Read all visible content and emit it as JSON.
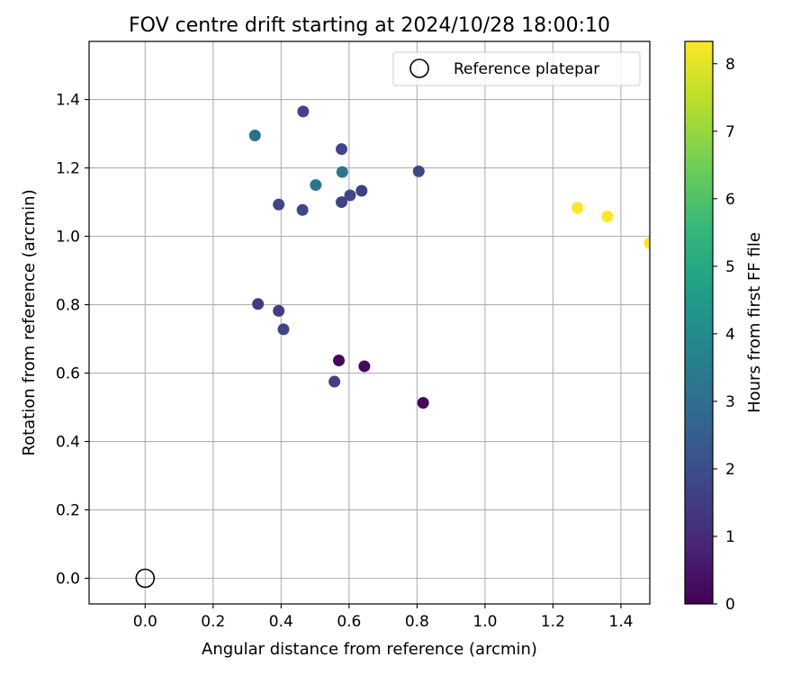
{
  "chart_data": {
    "type": "scatter",
    "title": "FOV centre drift starting at 2024/10/28 18:00:10",
    "xlabel": "Angular distance from reference (arcmin)",
    "ylabel": "Rotation from reference (arcmin)",
    "xlim": [
      -0.165,
      1.485
    ],
    "ylim": [
      -0.075,
      1.57
    ],
    "xticks": [
      0.0,
      0.2,
      0.4,
      0.6,
      0.8,
      1.0,
      1.2,
      1.4
    ],
    "xtick_labels": [
      "0.0",
      "0.2",
      "0.4",
      "0.6",
      "0.8",
      "1.0",
      "1.2",
      "1.4"
    ],
    "yticks": [
      0.0,
      0.2,
      0.4,
      0.6,
      0.8,
      1.0,
      1.2,
      1.4
    ],
    "ytick_labels": [
      "0.0",
      "0.2",
      "0.4",
      "0.6",
      "0.8",
      "1.0",
      "1.2",
      "1.4"
    ],
    "grid": true,
    "legend": {
      "placement": "top-right",
      "entries": [
        "Reference platepar"
      ]
    },
    "reference_point": {
      "x": 0.0,
      "y": 0.0
    },
    "colorbar": {
      "label": "Hours from first FF file",
      "range": [
        0,
        8.33
      ],
      "ticks": [
        0,
        1,
        2,
        3,
        4,
        5,
        6,
        7,
        8
      ],
      "tick_labels": [
        "0",
        "1",
        "2",
        "3",
        "4",
        "5",
        "6",
        "7",
        "8"
      ],
      "colormap": "viridis",
      "colormap_stops": [
        "#440154",
        "#482878",
        "#3e4989",
        "#31688e",
        "#26828e",
        "#1f9e89",
        "#35b779",
        "#6ece58",
        "#b5de2b",
        "#fde725"
      ]
    },
    "points": [
      {
        "x": 0.465,
        "y": 1.365,
        "c": 1.7
      },
      {
        "x": 0.323,
        "y": 1.295,
        "c": 3.0
      },
      {
        "x": 0.578,
        "y": 1.255,
        "c": 1.8
      },
      {
        "x": 0.805,
        "y": 1.19,
        "c": 1.8
      },
      {
        "x": 0.58,
        "y": 1.188,
        "c": 3.3
      },
      {
        "x": 0.502,
        "y": 1.15,
        "c": 3.2
      },
      {
        "x": 0.637,
        "y": 1.133,
        "c": 1.6
      },
      {
        "x": 0.603,
        "y": 1.12,
        "c": 1.8
      },
      {
        "x": 0.578,
        "y": 1.1,
        "c": 1.7
      },
      {
        "x": 0.393,
        "y": 1.093,
        "c": 1.7
      },
      {
        "x": 0.463,
        "y": 1.077,
        "c": 1.8
      },
      {
        "x": 1.272,
        "y": 1.083,
        "c": 8.3
      },
      {
        "x": 1.36,
        "y": 1.058,
        "c": 8.3
      },
      {
        "x": 1.485,
        "y": 0.98,
        "c": 8.3
      },
      {
        "x": 0.332,
        "y": 0.802,
        "c": 1.5
      },
      {
        "x": 0.393,
        "y": 0.782,
        "c": 1.5
      },
      {
        "x": 0.407,
        "y": 0.728,
        "c": 1.7
      },
      {
        "x": 0.57,
        "y": 0.637,
        "c": 0.2
      },
      {
        "x": 0.645,
        "y": 0.62,
        "c": 0.2
      },
      {
        "x": 0.557,
        "y": 0.575,
        "c": 1.6
      },
      {
        "x": 0.818,
        "y": 0.513,
        "c": 0.2
      }
    ]
  }
}
